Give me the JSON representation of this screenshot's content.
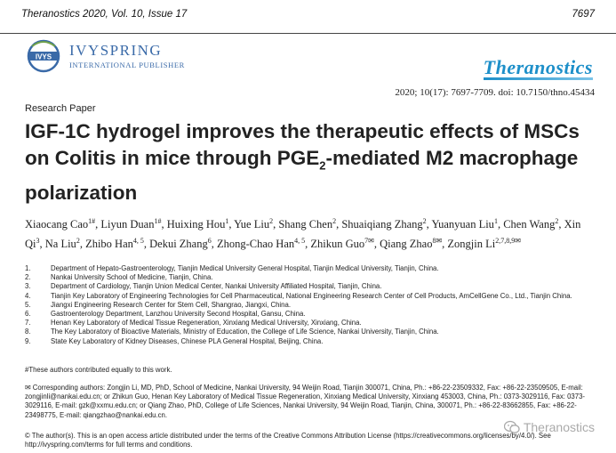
{
  "header": {
    "journal_ref": "Theranostics 2020, Vol. 10, Issue 17",
    "page_number": "7697"
  },
  "publisher": {
    "name": "IVYSPRING",
    "subtitle": "INTERNATIONAL PUBLISHER"
  },
  "journal_logo": "Theranostics",
  "citation": "2020; 10(17): 7697-7709. doi: 10.7150/thno.45434",
  "section_label": "Research Paper",
  "title": {
    "part1": "IGF-1C hydrogel improves the therapeutic effects of MSCs on Colitis in mice through PGE",
    "sub": "2",
    "part2": "-mediated M2 macrophage polarization"
  },
  "authors": [
    {
      "name": "Xiaocang Cao",
      "sup": "1#"
    },
    {
      "name": "Liyun Duan",
      "sup": "1#"
    },
    {
      "name": "Huixing Hou",
      "sup": "1"
    },
    {
      "name": "Yue Liu",
      "sup": "2"
    },
    {
      "name": "Shang Chen",
      "sup": "2"
    },
    {
      "name": "Shuaiqiang Zhang",
      "sup": "2"
    },
    {
      "name": "Yuanyuan Liu",
      "sup": "1"
    },
    {
      "name": "Chen Wang",
      "sup": "2"
    },
    {
      "name": "Xin Qi",
      "sup": "3"
    },
    {
      "name": "Na Liu",
      "sup": "2"
    },
    {
      "name": "Zhibo Han",
      "sup": "4, 5"
    },
    {
      "name": "Dekui Zhang",
      "sup": "6"
    },
    {
      "name": "Zhong-Chao Han",
      "sup": "4, 5"
    },
    {
      "name": "Zhikun Guo",
      "sup": "7✉"
    },
    {
      "name": "Qiang Zhao",
      "sup": "8✉"
    },
    {
      "name": "Zongjin Li",
      "sup": "2,7,8,9✉"
    }
  ],
  "affiliations": [
    {
      "num": "1.",
      "text": "Department of Hepato-Gastroenterology, Tianjin Medical University General Hospital, Tianjin Medical University, Tianjin, China."
    },
    {
      "num": "2.",
      "text": "Nankai University School of Medicine, Tianjin, China."
    },
    {
      "num": "3.",
      "text": "Department of Cardiology, Tianjin Union Medical Center, Nankai University Affiliated Hospital, Tianjin, China."
    },
    {
      "num": "4.",
      "text": "Tianjin Key Laboratory of Engineering Technologies for Cell Pharmaceutical, National Engineering Research Center of Cell Products, AmCellGene Co., Ltd., Tianjin China."
    },
    {
      "num": "5.",
      "text": "Jiangxi Engineering Research Center for Stem Cell, Shangrao, Jiangxi, China."
    },
    {
      "num": "6.",
      "text": "Gastroenterology Department, Lanzhou University Second Hospital, Gansu, China."
    },
    {
      "num": "7.",
      "text": "Henan Key Laboratory of Medical Tissue Regeneration, Xinxiang Medical University, Xinxiang, China."
    },
    {
      "num": "8.",
      "text": "The Key Laboratory of Bioactive Materials, Ministry of Education, the College of Life Science, Nankai University, Tianjin, China."
    },
    {
      "num": "9.",
      "text": "State Key Laboratory of Kidney Diseases, Chinese PLA General Hospital, Beijing, China."
    }
  ],
  "footnote": "#These authors contributed equally to this work.",
  "corresponding": "✉ Corresponding authors: Zongjin Li, MD, PhD, School of Medicine, Nankai University, 94 Weijin Road, Tianjin 300071, China, Ph.: +86-22-23509332, Fax: +86-22-23509505, E-mail: zongjinli@nankai.edu.cn; or Zhikun Guo, Henan Key Laboratory of Medical Tissue Regeneration, Xinxiang Medical University, Xinxiang 453003, China, Ph.: 0373-3029116, Fax: 0373-3029116, E-mail: gzk@xxmu.edu.cn; or Qiang Zhao, PhD, College of Life Sciences, Nankai University, 94 Weijin Road, Tianjin, China, 300071, Ph.: +86-22-83662855, Fax: +86-22-23498775, E-mail: qiangzhao@nankai.edu.cn.",
  "license": "© The author(s). This is an open access article distributed under the terms of the Creative Commons Attribution License (https://creativecommons.org/licenses/by/4.0/). See http://ivyspring.com/terms for full terms and conditions.",
  "watermark": "Theranostics",
  "colors": {
    "publisher_blue": "#3a6aa8",
    "brand_blue": "#1d8fc9",
    "text": "#222222"
  }
}
